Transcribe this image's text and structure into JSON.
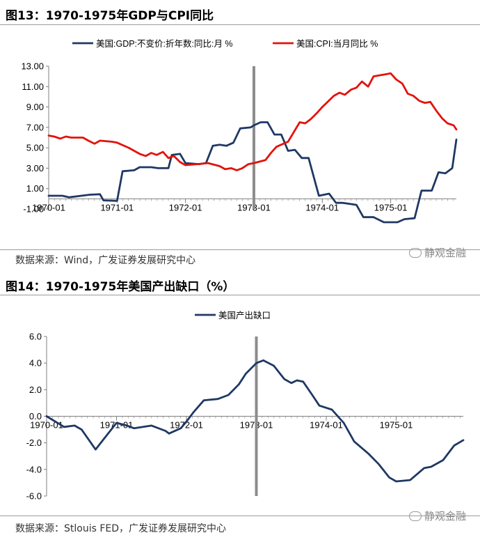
{
  "figure13": {
    "title": "图13：1970-1975年GDP与CPI同比",
    "source": "数据来源：Wind，广发证券发展研究中心",
    "watermark": "静观金融",
    "watermark_icon": "wechat-icon"
  },
  "figure14": {
    "title": "图14：1970-1975年美国产出缺口（%）",
    "source": "数据来源：Stlouis FED，广发证券发展研究中心",
    "watermark": "静观金融",
    "watermark_icon": "wechat-icon"
  },
  "chart_data": [
    {
      "type": "line",
      "title": "1970-1975年GDP与CPI同比",
      "xlabel": "",
      "ylabel": "",
      "xlim": [
        1970.0,
        1975.96
      ],
      "ylim": [
        -1.0,
        13.0
      ],
      "yticks": [
        "-1.00",
        "1.00",
        "3.00",
        "5.00",
        "7.00",
        "9.00",
        "11.00",
        "13.00"
      ],
      "ytick_values": [
        -1,
        1,
        3,
        5,
        7,
        9,
        11,
        13
      ],
      "xticks": [
        "1970-01",
        "1971-01",
        "1972-01",
        "1973-01",
        "1974-01",
        "1975-01"
      ],
      "xtick_values": [
        1970,
        1971,
        1972,
        1973,
        1974,
        1975
      ],
      "vline": 1973.0,
      "legend_position": "top",
      "grid": false,
      "series": [
        {
          "name": "美国:GDP:不变价:折年数:同比:月 %",
          "color": "#1f3864",
          "points": [
            [
              1970.0,
              0.3
            ],
            [
              1970.2,
              0.3
            ],
            [
              1970.3,
              0.15
            ],
            [
              1970.6,
              0.4
            ],
            [
              1970.75,
              0.45
            ],
            [
              1970.8,
              -0.15
            ],
            [
              1971.0,
              -0.2
            ],
            [
              1971.08,
              2.7
            ],
            [
              1971.25,
              2.8
            ],
            [
              1971.33,
              3.1
            ],
            [
              1971.5,
              3.1
            ],
            [
              1971.6,
              3.0
            ],
            [
              1971.75,
              3.0
            ],
            [
              1971.8,
              4.3
            ],
            [
              1971.92,
              4.4
            ],
            [
              1972.0,
              3.5
            ],
            [
              1972.2,
              3.4
            ],
            [
              1972.3,
              3.5
            ],
            [
              1972.4,
              5.2
            ],
            [
              1972.5,
              5.3
            ],
            [
              1972.6,
              5.2
            ],
            [
              1972.7,
              5.5
            ],
            [
              1972.8,
              6.9
            ],
            [
              1972.95,
              7.0
            ],
            [
              1973.0,
              7.2
            ],
            [
              1973.1,
              7.5
            ],
            [
              1973.2,
              7.5
            ],
            [
              1973.3,
              6.3
            ],
            [
              1973.4,
              6.3
            ],
            [
              1973.5,
              4.7
            ],
            [
              1973.6,
              4.8
            ],
            [
              1973.7,
              4.0
            ],
            [
              1973.8,
              4.0
            ],
            [
              1973.95,
              0.3
            ],
            [
              1974.1,
              0.5
            ],
            [
              1974.2,
              -0.4
            ],
            [
              1974.3,
              -0.4
            ],
            [
              1974.5,
              -0.6
            ],
            [
              1974.6,
              -1.8
            ],
            [
              1974.75,
              -1.8
            ],
            [
              1974.9,
              -2.3
            ],
            [
              1975.1,
              -2.3
            ],
            [
              1975.2,
              -2.0
            ],
            [
              1975.35,
              -1.9
            ],
            [
              1975.45,
              0.8
            ],
            [
              1975.6,
              0.8
            ],
            [
              1975.7,
              2.6
            ],
            [
              1975.8,
              2.5
            ],
            [
              1975.9,
              3.0
            ],
            [
              1975.96,
              5.8
            ]
          ]
        },
        {
          "name": "美国:CPI:当月同比 %",
          "color": "#e3120b",
          "points": [
            [
              1970.0,
              6.2
            ],
            [
              1970.08,
              6.1
            ],
            [
              1970.17,
              5.9
            ],
            [
              1970.25,
              6.1
            ],
            [
              1970.33,
              6.0
            ],
            [
              1970.5,
              6.0
            ],
            [
              1970.58,
              5.7
            ],
            [
              1970.67,
              5.4
            ],
            [
              1970.75,
              5.7
            ],
            [
              1970.92,
              5.6
            ],
            [
              1971.0,
              5.5
            ],
            [
              1971.17,
              5.0
            ],
            [
              1971.33,
              4.4
            ],
            [
              1971.42,
              4.2
            ],
            [
              1971.5,
              4.5
            ],
            [
              1971.58,
              4.3
            ],
            [
              1971.67,
              4.6
            ],
            [
              1971.75,
              4.0
            ],
            [
              1971.83,
              4.2
            ],
            [
              1971.92,
              3.6
            ],
            [
              1972.0,
              3.3
            ],
            [
              1972.17,
              3.4
            ],
            [
              1972.33,
              3.5
            ],
            [
              1972.5,
              3.2
            ],
            [
              1972.58,
              2.9
            ],
            [
              1972.67,
              3.0
            ],
            [
              1972.75,
              2.8
            ],
            [
              1972.83,
              3.0
            ],
            [
              1972.92,
              3.4
            ],
            [
              1973.0,
              3.5
            ],
            [
              1973.17,
              3.8
            ],
            [
              1973.25,
              4.5
            ],
            [
              1973.33,
              5.1
            ],
            [
              1973.5,
              5.6
            ],
            [
              1973.58,
              6.5
            ],
            [
              1973.67,
              7.5
            ],
            [
              1973.75,
              7.4
            ],
            [
              1973.83,
              7.8
            ],
            [
              1973.92,
              8.4
            ],
            [
              1974.0,
              9.0
            ],
            [
              1974.17,
              10.1
            ],
            [
              1974.25,
              10.4
            ],
            [
              1974.33,
              10.2
            ],
            [
              1974.42,
              10.7
            ],
            [
              1974.5,
              10.9
            ],
            [
              1974.58,
              11.5
            ],
            [
              1974.67,
              11.0
            ],
            [
              1974.75,
              12.0
            ],
            [
              1974.83,
              12.1
            ],
            [
              1974.92,
              12.2
            ],
            [
              1975.0,
              12.3
            ],
            [
              1975.08,
              11.7
            ],
            [
              1975.17,
              11.3
            ],
            [
              1975.25,
              10.3
            ],
            [
              1975.33,
              10.1
            ],
            [
              1975.42,
              9.6
            ],
            [
              1975.5,
              9.4
            ],
            [
              1975.58,
              9.5
            ],
            [
              1975.67,
              8.6
            ],
            [
              1975.75,
              7.9
            ],
            [
              1975.83,
              7.4
            ],
            [
              1975.92,
              7.2
            ],
            [
              1975.96,
              6.8
            ]
          ]
        }
      ]
    },
    {
      "type": "line",
      "title": "1970-1975年美国产出缺口（%）",
      "xlabel": "",
      "ylabel": "",
      "xlim": [
        1970.0,
        1975.96
      ],
      "ylim": [
        -6.0,
        6.0
      ],
      "yticks": [
        "-6.0",
        "-4.0",
        "-2.0",
        "0.0",
        "2.0",
        "4.0",
        "6.0"
      ],
      "ytick_values": [
        -6,
        -4,
        -2,
        0,
        2,
        4,
        6
      ],
      "xticks": [
        "1970-01",
        "1971-01",
        "1972-01",
        "1973-01",
        "1974-01",
        "1975-01"
      ],
      "xtick_values": [
        1970,
        1971,
        1972,
        1973,
        1974,
        1975
      ],
      "vline": 1973.0,
      "legend_position": "top",
      "grid": false,
      "series": [
        {
          "name": "美国产出缺口",
          "color": "#1f3864",
          "points": [
            [
              1970.0,
              0.0
            ],
            [
              1970.25,
              -0.8
            ],
            [
              1970.4,
              -0.7
            ],
            [
              1970.5,
              -1.0
            ],
            [
              1970.7,
              -2.5
            ],
            [
              1970.85,
              -1.5
            ],
            [
              1971.0,
              -0.5
            ],
            [
              1971.15,
              -0.7
            ],
            [
              1971.25,
              -0.9
            ],
            [
              1971.5,
              -0.7
            ],
            [
              1971.7,
              -1.1
            ],
            [
              1971.75,
              -1.3
            ],
            [
              1971.92,
              -0.9
            ],
            [
              1972.0,
              -0.4
            ],
            [
              1972.1,
              0.3
            ],
            [
              1972.25,
              1.2
            ],
            [
              1972.45,
              1.3
            ],
            [
              1972.6,
              1.6
            ],
            [
              1972.75,
              2.4
            ],
            [
              1972.85,
              3.2
            ],
            [
              1973.0,
              4.0
            ],
            [
              1973.1,
              4.2
            ],
            [
              1973.25,
              3.8
            ],
            [
              1973.4,
              2.8
            ],
            [
              1973.5,
              2.5
            ],
            [
              1973.58,
              2.7
            ],
            [
              1973.67,
              2.6
            ],
            [
              1973.8,
              1.6
            ],
            [
              1973.9,
              0.8
            ],
            [
              1974.08,
              0.5
            ],
            [
              1974.25,
              -0.5
            ],
            [
              1974.4,
              -1.9
            ],
            [
              1974.6,
              -2.8
            ],
            [
              1974.75,
              -3.6
            ],
            [
              1974.9,
              -4.6
            ],
            [
              1975.0,
              -4.9
            ],
            [
              1975.2,
              -4.8
            ],
            [
              1975.4,
              -3.9
            ],
            [
              1975.5,
              -3.8
            ],
            [
              1975.67,
              -3.3
            ],
            [
              1975.83,
              -2.2
            ],
            [
              1975.96,
              -1.8
            ]
          ]
        }
      ]
    }
  ]
}
